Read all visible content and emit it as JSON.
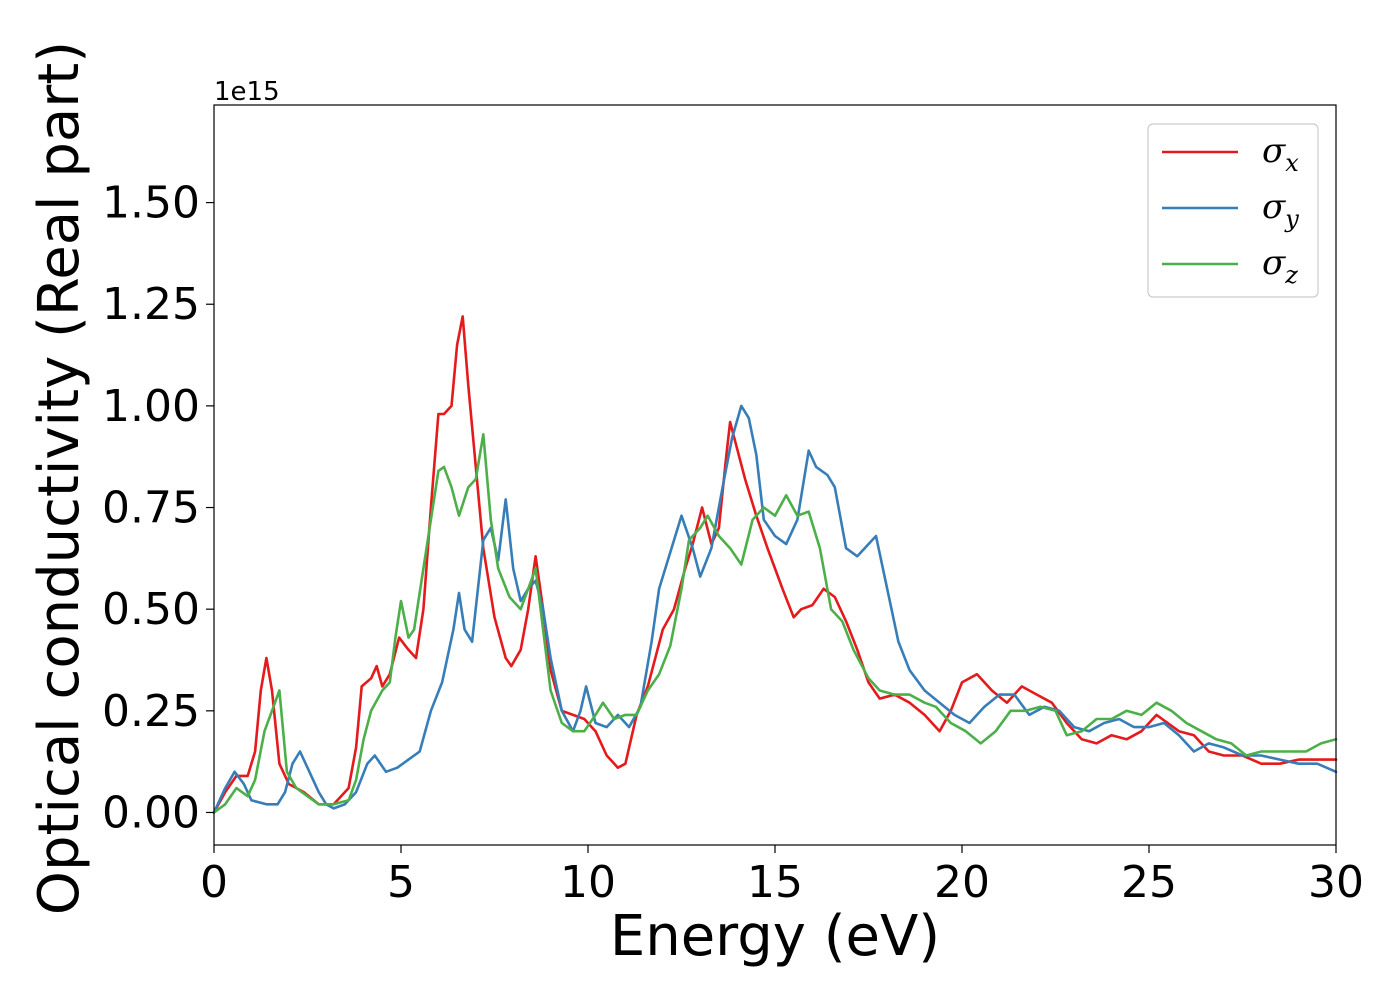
{
  "chart_data": {
    "type": "line",
    "title": "",
    "xlabel": "Energy (eV)",
    "ylabel": "Optical conductivity (Real part)",
    "y_offset_label": "1e15",
    "xlim": [
      0,
      30
    ],
    "ylim": [
      -0.08,
      1.74
    ],
    "xticks": [
      0,
      5,
      10,
      15,
      20,
      25,
      30
    ],
    "xtick_labels": [
      "0",
      "5",
      "10",
      "15",
      "20",
      "25",
      "30"
    ],
    "yticks": [
      0.0,
      0.25,
      0.5,
      0.75,
      1.0,
      1.25,
      1.5
    ],
    "ytick_labels": [
      "0.00",
      "0.25",
      "0.50",
      "0.75",
      "1.00",
      "1.25",
      "1.50"
    ],
    "grid": false,
    "legend_position": "top-right",
    "series": [
      {
        "name": "σx",
        "name_base": "σ",
        "name_sub": "x",
        "color": "#e41a1c",
        "points": [
          [
            0,
            0
          ],
          [
            0.3,
            0.05
          ],
          [
            0.6,
            0.09
          ],
          [
            0.9,
            0.09
          ],
          [
            1.1,
            0.15
          ],
          [
            1.25,
            0.3
          ],
          [
            1.4,
            0.38
          ],
          [
            1.55,
            0.3
          ],
          [
            1.75,
            0.12
          ],
          [
            2.0,
            0.07
          ],
          [
            2.4,
            0.05
          ],
          [
            2.8,
            0.02
          ],
          [
            3.2,
            0.02
          ],
          [
            3.6,
            0.06
          ],
          [
            3.8,
            0.16
          ],
          [
            3.95,
            0.31
          ],
          [
            4.2,
            0.33
          ],
          [
            4.35,
            0.36
          ],
          [
            4.5,
            0.31
          ],
          [
            4.7,
            0.34
          ],
          [
            4.95,
            0.43
          ],
          [
            5.2,
            0.4
          ],
          [
            5.4,
            0.38
          ],
          [
            5.6,
            0.5
          ],
          [
            5.8,
            0.75
          ],
          [
            6.0,
            0.98
          ],
          [
            6.15,
            0.98
          ],
          [
            6.35,
            1.0
          ],
          [
            6.5,
            1.15
          ],
          [
            6.65,
            1.22
          ],
          [
            6.8,
            1.05
          ],
          [
            7.0,
            0.85
          ],
          [
            7.2,
            0.65
          ],
          [
            7.5,
            0.48
          ],
          [
            7.8,
            0.38
          ],
          [
            7.95,
            0.36
          ],
          [
            8.2,
            0.4
          ],
          [
            8.4,
            0.5
          ],
          [
            8.6,
            0.63
          ],
          [
            8.8,
            0.5
          ],
          [
            9.0,
            0.35
          ],
          [
            9.3,
            0.25
          ],
          [
            9.6,
            0.24
          ],
          [
            9.9,
            0.23
          ],
          [
            10.2,
            0.2
          ],
          [
            10.5,
            0.14
          ],
          [
            10.8,
            0.11
          ],
          [
            11.0,
            0.12
          ],
          [
            11.3,
            0.24
          ],
          [
            11.6,
            0.31
          ],
          [
            11.8,
            0.38
          ],
          [
            12.0,
            0.45
          ],
          [
            12.3,
            0.5
          ],
          [
            12.6,
            0.6
          ],
          [
            12.8,
            0.66
          ],
          [
            13.05,
            0.75
          ],
          [
            13.3,
            0.66
          ],
          [
            13.5,
            0.7
          ],
          [
            13.7,
            0.88
          ],
          [
            13.8,
            0.96
          ],
          [
            14.0,
            0.89
          ],
          [
            14.2,
            0.82
          ],
          [
            14.5,
            0.73
          ],
          [
            14.8,
            0.65
          ],
          [
            15.0,
            0.6
          ],
          [
            15.2,
            0.55
          ],
          [
            15.5,
            0.48
          ],
          [
            15.7,
            0.5
          ],
          [
            16.0,
            0.51
          ],
          [
            16.3,
            0.55
          ],
          [
            16.6,
            0.53
          ],
          [
            16.9,
            0.47
          ],
          [
            17.2,
            0.4
          ],
          [
            17.5,
            0.32
          ],
          [
            17.8,
            0.28
          ],
          [
            18.2,
            0.29
          ],
          [
            18.6,
            0.27
          ],
          [
            19.0,
            0.24
          ],
          [
            19.4,
            0.2
          ],
          [
            19.7,
            0.25
          ],
          [
            20.0,
            0.32
          ],
          [
            20.4,
            0.34
          ],
          [
            20.8,
            0.3
          ],
          [
            21.2,
            0.27
          ],
          [
            21.6,
            0.31
          ],
          [
            22.0,
            0.29
          ],
          [
            22.4,
            0.27
          ],
          [
            22.8,
            0.22
          ],
          [
            23.2,
            0.18
          ],
          [
            23.6,
            0.17
          ],
          [
            24.0,
            0.19
          ],
          [
            24.4,
            0.18
          ],
          [
            24.8,
            0.2
          ],
          [
            25.2,
            0.24
          ],
          [
            25.5,
            0.22
          ],
          [
            25.8,
            0.2
          ],
          [
            26.2,
            0.19
          ],
          [
            26.6,
            0.15
          ],
          [
            27.0,
            0.14
          ],
          [
            27.5,
            0.14
          ],
          [
            28.0,
            0.12
          ],
          [
            28.5,
            0.12
          ],
          [
            29.0,
            0.13
          ],
          [
            29.5,
            0.13
          ],
          [
            30.0,
            0.13
          ]
        ]
      },
      {
        "name": "σy",
        "name_base": "σ",
        "name_sub": "y",
        "color": "#377eb8",
        "points": [
          [
            0,
            0
          ],
          [
            0.3,
            0.06
          ],
          [
            0.55,
            0.1
          ],
          [
            0.8,
            0.07
          ],
          [
            1.0,
            0.03
          ],
          [
            1.4,
            0.02
          ],
          [
            1.7,
            0.02
          ],
          [
            1.9,
            0.05
          ],
          [
            2.1,
            0.12
          ],
          [
            2.3,
            0.15
          ],
          [
            2.5,
            0.11
          ],
          [
            2.8,
            0.05
          ],
          [
            3.0,
            0.02
          ],
          [
            3.2,
            0.01
          ],
          [
            3.5,
            0.02
          ],
          [
            3.8,
            0.05
          ],
          [
            4.1,
            0.12
          ],
          [
            4.3,
            0.14
          ],
          [
            4.6,
            0.1
          ],
          [
            4.9,
            0.11
          ],
          [
            5.2,
            0.13
          ],
          [
            5.5,
            0.15
          ],
          [
            5.8,
            0.25
          ],
          [
            6.1,
            0.32
          ],
          [
            6.4,
            0.45
          ],
          [
            6.55,
            0.54
          ],
          [
            6.7,
            0.45
          ],
          [
            6.9,
            0.42
          ],
          [
            7.2,
            0.67
          ],
          [
            7.4,
            0.7
          ],
          [
            7.6,
            0.62
          ],
          [
            7.8,
            0.77
          ],
          [
            8.0,
            0.6
          ],
          [
            8.2,
            0.52
          ],
          [
            8.4,
            0.55
          ],
          [
            8.6,
            0.57
          ],
          [
            8.8,
            0.5
          ],
          [
            9.0,
            0.38
          ],
          [
            9.3,
            0.25
          ],
          [
            9.6,
            0.2
          ],
          [
            9.8,
            0.25
          ],
          [
            9.95,
            0.31
          ],
          [
            10.2,
            0.22
          ],
          [
            10.5,
            0.21
          ],
          [
            10.8,
            0.24
          ],
          [
            11.1,
            0.21
          ],
          [
            11.4,
            0.26
          ],
          [
            11.7,
            0.42
          ],
          [
            11.9,
            0.55
          ],
          [
            12.2,
            0.64
          ],
          [
            12.5,
            0.73
          ],
          [
            12.8,
            0.65
          ],
          [
            13.0,
            0.58
          ],
          [
            13.3,
            0.65
          ],
          [
            13.6,
            0.8
          ],
          [
            13.85,
            0.92
          ],
          [
            14.1,
            1.0
          ],
          [
            14.3,
            0.97
          ],
          [
            14.5,
            0.88
          ],
          [
            14.7,
            0.72
          ],
          [
            15.0,
            0.68
          ],
          [
            15.3,
            0.66
          ],
          [
            15.6,
            0.72
          ],
          [
            15.9,
            0.89
          ],
          [
            16.1,
            0.85
          ],
          [
            16.4,
            0.83
          ],
          [
            16.6,
            0.8
          ],
          [
            16.9,
            0.65
          ],
          [
            17.2,
            0.63
          ],
          [
            17.5,
            0.66
          ],
          [
            17.7,
            0.68
          ],
          [
            18.0,
            0.55
          ],
          [
            18.3,
            0.42
          ],
          [
            18.6,
            0.35
          ],
          [
            19.0,
            0.3
          ],
          [
            19.4,
            0.27
          ],
          [
            19.8,
            0.24
          ],
          [
            20.2,
            0.22
          ],
          [
            20.6,
            0.26
          ],
          [
            21.0,
            0.29
          ],
          [
            21.4,
            0.29
          ],
          [
            21.8,
            0.24
          ],
          [
            22.2,
            0.26
          ],
          [
            22.6,
            0.25
          ],
          [
            23.0,
            0.21
          ],
          [
            23.4,
            0.2
          ],
          [
            23.8,
            0.22
          ],
          [
            24.2,
            0.23
          ],
          [
            24.6,
            0.21
          ],
          [
            25.0,
            0.21
          ],
          [
            25.4,
            0.22
          ],
          [
            25.8,
            0.19
          ],
          [
            26.2,
            0.15
          ],
          [
            26.6,
            0.17
          ],
          [
            27.0,
            0.16
          ],
          [
            27.5,
            0.14
          ],
          [
            28.0,
            0.14
          ],
          [
            28.5,
            0.13
          ],
          [
            29.0,
            0.12
          ],
          [
            29.5,
            0.12
          ],
          [
            30.0,
            0.1
          ]
        ]
      },
      {
        "name": "σz",
        "name_base": "σ",
        "name_sub": "z",
        "color": "#4daf4a",
        "points": [
          [
            0,
            0
          ],
          [
            0.3,
            0.02
          ],
          [
            0.6,
            0.06
          ],
          [
            0.9,
            0.04
          ],
          [
            1.1,
            0.08
          ],
          [
            1.35,
            0.2
          ],
          [
            1.55,
            0.25
          ],
          [
            1.75,
            0.3
          ],
          [
            1.95,
            0.1
          ],
          [
            2.2,
            0.06
          ],
          [
            2.5,
            0.04
          ],
          [
            2.8,
            0.02
          ],
          [
            3.2,
            0.02
          ],
          [
            3.6,
            0.03
          ],
          [
            3.8,
            0.08
          ],
          [
            4.0,
            0.18
          ],
          [
            4.2,
            0.25
          ],
          [
            4.5,
            0.3
          ],
          [
            4.7,
            0.32
          ],
          [
            4.85,
            0.43
          ],
          [
            5.0,
            0.52
          ],
          [
            5.2,
            0.43
          ],
          [
            5.35,
            0.45
          ],
          [
            5.6,
            0.6
          ],
          [
            5.8,
            0.72
          ],
          [
            6.0,
            0.84
          ],
          [
            6.15,
            0.85
          ],
          [
            6.35,
            0.8
          ],
          [
            6.55,
            0.73
          ],
          [
            6.8,
            0.8
          ],
          [
            7.0,
            0.82
          ],
          [
            7.2,
            0.93
          ],
          [
            7.4,
            0.72
          ],
          [
            7.6,
            0.6
          ],
          [
            7.9,
            0.53
          ],
          [
            8.2,
            0.5
          ],
          [
            8.4,
            0.55
          ],
          [
            8.6,
            0.6
          ],
          [
            8.8,
            0.45
          ],
          [
            9.0,
            0.3
          ],
          [
            9.3,
            0.22
          ],
          [
            9.6,
            0.2
          ],
          [
            9.9,
            0.2
          ],
          [
            10.2,
            0.24
          ],
          [
            10.4,
            0.27
          ],
          [
            10.7,
            0.23
          ],
          [
            11.0,
            0.24
          ],
          [
            11.3,
            0.24
          ],
          [
            11.6,
            0.3
          ],
          [
            11.9,
            0.34
          ],
          [
            12.2,
            0.41
          ],
          [
            12.5,
            0.55
          ],
          [
            12.7,
            0.67
          ],
          [
            13.0,
            0.7
          ],
          [
            13.2,
            0.73
          ],
          [
            13.5,
            0.68
          ],
          [
            13.8,
            0.65
          ],
          [
            14.1,
            0.61
          ],
          [
            14.4,
            0.72
          ],
          [
            14.7,
            0.75
          ],
          [
            15.0,
            0.73
          ],
          [
            15.3,
            0.78
          ],
          [
            15.6,
            0.73
          ],
          [
            15.9,
            0.74
          ],
          [
            16.2,
            0.65
          ],
          [
            16.5,
            0.5
          ],
          [
            16.8,
            0.47
          ],
          [
            17.1,
            0.4
          ],
          [
            17.5,
            0.33
          ],
          [
            17.8,
            0.3
          ],
          [
            18.2,
            0.29
          ],
          [
            18.6,
            0.29
          ],
          [
            19.0,
            0.27
          ],
          [
            19.3,
            0.26
          ],
          [
            19.7,
            0.22
          ],
          [
            20.1,
            0.2
          ],
          [
            20.5,
            0.17
          ],
          [
            20.9,
            0.2
          ],
          [
            21.3,
            0.25
          ],
          [
            21.7,
            0.25
          ],
          [
            22.1,
            0.26
          ],
          [
            22.5,
            0.25
          ],
          [
            22.8,
            0.19
          ],
          [
            23.2,
            0.2
          ],
          [
            23.6,
            0.23
          ],
          [
            24.0,
            0.23
          ],
          [
            24.4,
            0.25
          ],
          [
            24.8,
            0.24
          ],
          [
            25.2,
            0.27
          ],
          [
            25.6,
            0.25
          ],
          [
            26.0,
            0.22
          ],
          [
            26.4,
            0.2
          ],
          [
            26.8,
            0.18
          ],
          [
            27.2,
            0.17
          ],
          [
            27.6,
            0.14
          ],
          [
            28.0,
            0.15
          ],
          [
            28.4,
            0.15
          ],
          [
            28.8,
            0.15
          ],
          [
            29.2,
            0.15
          ],
          [
            29.6,
            0.17
          ],
          [
            30.0,
            0.18
          ]
        ]
      }
    ]
  }
}
